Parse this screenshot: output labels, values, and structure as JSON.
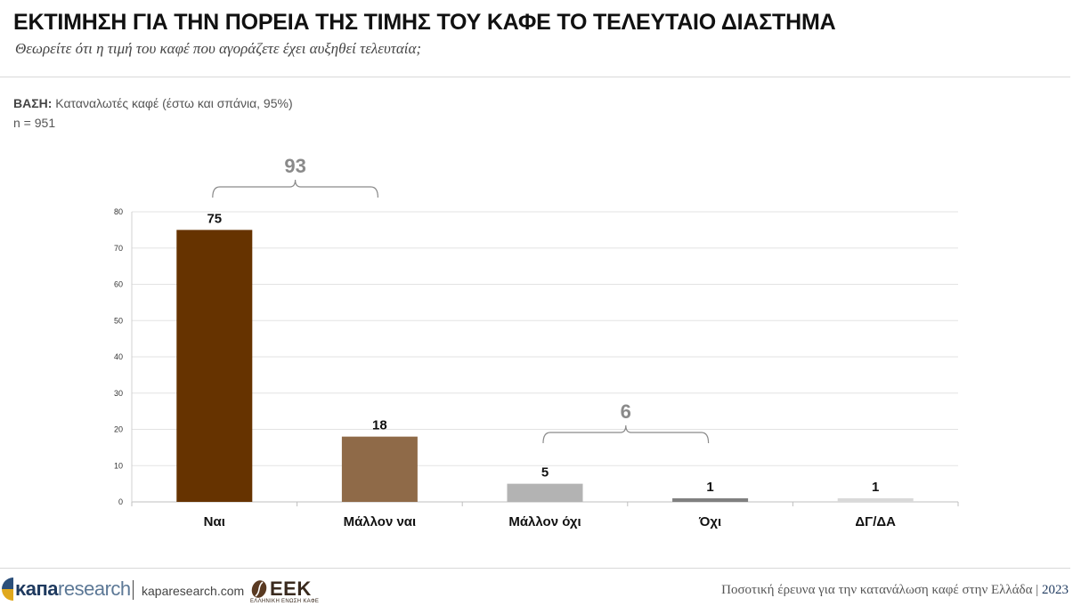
{
  "header": {
    "title": "ΕΚΤΙΜΗΣΗ ΓΙΑ ΤΗΝ ΠΟΡΕΙΑ ΤΗΣ ΤΙΜΗΣ ΤΟΥ ΚΑΦΕ ΤΟ ΤΕΛΕΥΤΑΙΟ ΔΙΑΣΤΗΜΑ",
    "subtitle": "Θεωρείτε ότι η τιμή του καφέ που αγοράζετε έχει αυξηθεί τελευταία;"
  },
  "base": {
    "label": "ΒΑΣΗ:",
    "text": "Καταναλωτές καφέ (έστω και σπάνια, 95%)",
    "sample": "n = 951"
  },
  "chart_data": {
    "type": "bar",
    "title": "",
    "xlabel": "",
    "ylabel": "",
    "ylim": [
      0,
      80
    ],
    "yticks": [
      0,
      10,
      20,
      30,
      40,
      50,
      60,
      70,
      80
    ],
    "grid": true,
    "categories": [
      "Ναι",
      "Μάλλον ναι",
      "Μάλλον όχι",
      "Όχι",
      "ΔΓ/ΔΑ"
    ],
    "values": [
      75,
      18,
      5,
      1,
      1
    ],
    "data_labels": [
      "75",
      "18",
      "5",
      "1",
      "1"
    ],
    "colors": [
      "#663300",
      "#8f6a48",
      "#b3b3b3",
      "#808080",
      "#d9d9d9"
    ],
    "groups": [
      {
        "label": "93",
        "from": 0,
        "to": 1
      },
      {
        "label": "6",
        "from": 2,
        "to": 3
      }
    ]
  },
  "footer": {
    "logo_kapa_bold": "κапа",
    "logo_kapa_light": "research",
    "site": "kaparesearch.com",
    "logo_eek": "ΕΕΚ",
    "logo_eek_sub": "ΕΛΛΗΝΙΚΗ ΕΝΩΣΗ ΚΑΦΕ",
    "note": "Ποσοτική έρευνα για την κατανάλωση καφέ στην Ελλάδα",
    "note_sep": "|",
    "year": "2023"
  }
}
